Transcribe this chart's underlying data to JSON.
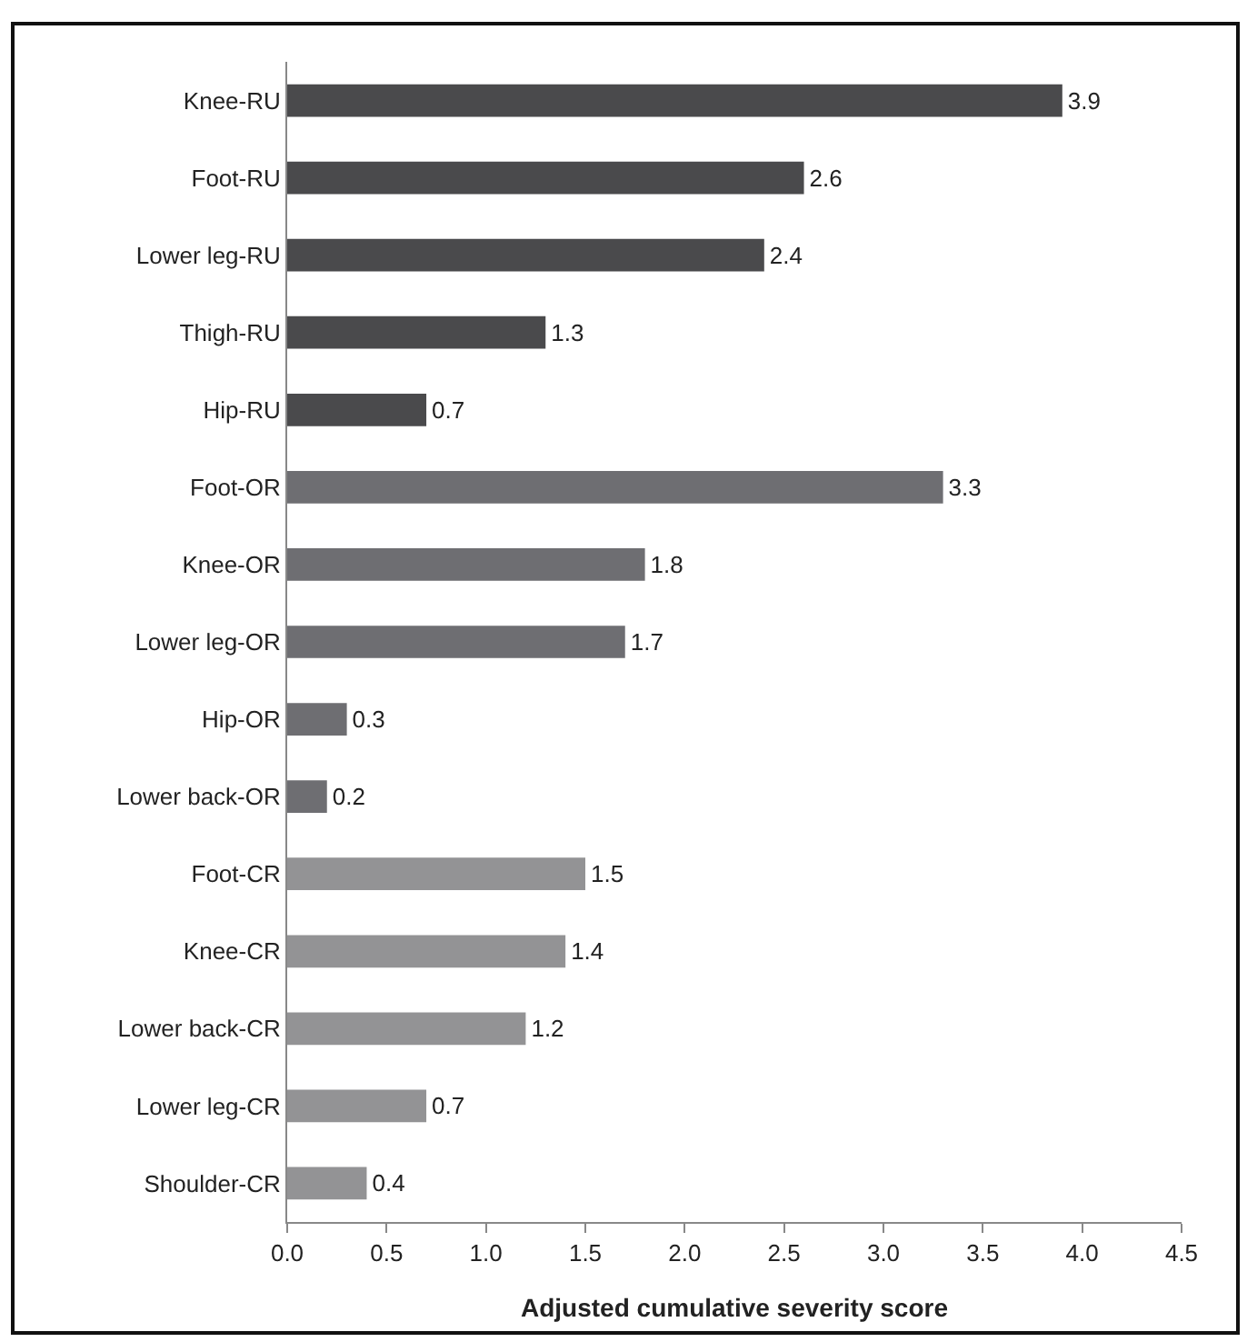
{
  "chart_data": {
    "type": "bar",
    "orientation": "horizontal",
    "xlabel": "Adjusted cumulative severity score",
    "categories": [
      "Knee-RU",
      "Foot-RU",
      "Lower leg-RU",
      "Thigh-RU",
      "Hip-RU",
      "Foot-OR",
      "Knee-OR",
      "Lower leg-OR",
      "Hip-OR",
      "Lower back-OR",
      "Foot-CR",
      "Knee-CR",
      "Lower back-CR",
      "Lower leg-CR",
      "Shoulder-CR"
    ],
    "values": [
      3.9,
      2.6,
      2.4,
      1.3,
      0.7,
      3.3,
      1.8,
      1.7,
      0.3,
      0.2,
      1.5,
      1.4,
      1.2,
      0.7,
      0.4
    ],
    "colors": [
      "#4a4a4c",
      "#4a4a4c",
      "#4a4a4c",
      "#4a4a4c",
      "#4a4a4c",
      "#6e6e72",
      "#6e6e72",
      "#6e6e72",
      "#6e6e72",
      "#6e6e72",
      "#939395",
      "#939395",
      "#939395",
      "#939395",
      "#939395"
    ],
    "xlim": [
      0,
      4.5
    ],
    "xticks": [
      {
        "value": 0,
        "label": "0.0"
      },
      {
        "value": 0.5,
        "label": "0.5"
      },
      {
        "value": 1,
        "label": "1.0"
      },
      {
        "value": 1.5,
        "label": "1.5"
      },
      {
        "value": 2,
        "label": "2.0"
      },
      {
        "value": 2.5,
        "label": "2.5"
      },
      {
        "value": 3,
        "label": "3.0"
      },
      {
        "value": 3.5,
        "label": "3.5"
      },
      {
        "value": 4,
        "label": "4.0"
      },
      {
        "value": 4.5,
        "label": "4.5"
      }
    ],
    "data_labels": true
  }
}
